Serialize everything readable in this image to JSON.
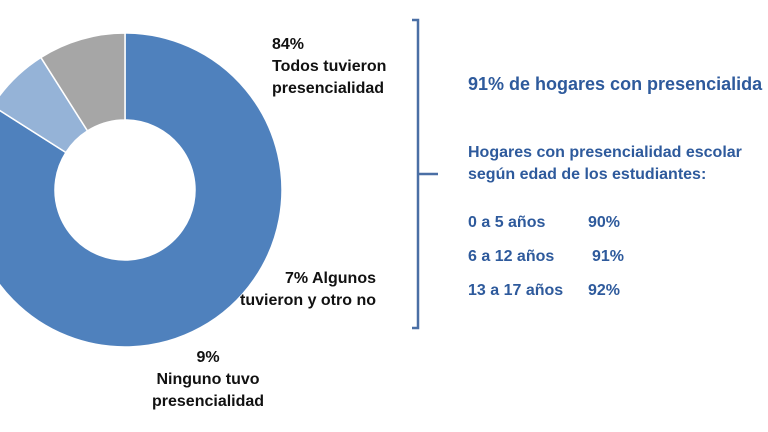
{
  "chart_data": {
    "type": "pie",
    "donut": true,
    "slices": [
      {
        "label_pct": "84%",
        "label_lines": [
          "Todos tuvieron",
          "presencialidad"
        ],
        "value": 84,
        "color": "#4f81bd"
      },
      {
        "label_pct": "7%",
        "label_lines": [
          "Algunos",
          "tuvieron y otro no"
        ],
        "value": 7,
        "color": "#95b3d7"
      },
      {
        "label_pct": "9%",
        "label_lines": [
          "Ninguno tuvo",
          "presencialidad"
        ],
        "value": 9,
        "color": "#a6a6a6"
      }
    ]
  },
  "panel": {
    "headline": "91% de hogares con presencialida",
    "subtitle_lines": [
      "Hogares con presencialidad escolar",
      "según edad de los estudiantes:"
    ],
    "age_rows": [
      {
        "range": "0 a 5 años",
        "pct": "90%"
      },
      {
        "range": "6 a 12 años",
        "pct": "91%"
      },
      {
        "range": "13 a 17 años",
        "pct": "92%"
      }
    ]
  },
  "colors": {
    "accent": "#2e5a9c",
    "bracket": "#4a6fa5"
  }
}
